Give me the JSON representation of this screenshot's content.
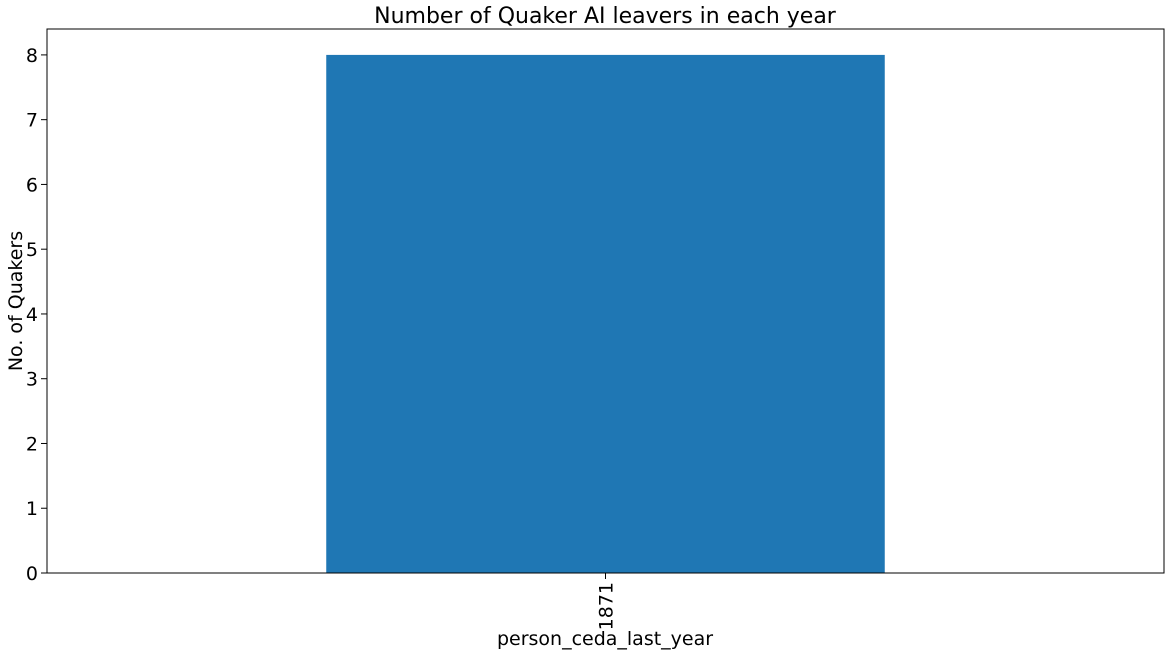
{
  "chart_data": {
    "type": "bar",
    "title": "Number of Quaker AI leavers in each year",
    "xlabel": "person_ceda_last_year",
    "ylabel": "No. of Quakers",
    "categories": [
      "1871"
    ],
    "values": [
      8
    ],
    "ylim": [
      0,
      8.4
    ],
    "yticks": [
      0,
      1,
      2,
      3,
      4,
      5,
      6,
      7,
      8
    ],
    "grid": false,
    "legend": "none",
    "bar_color": "#1f77b4"
  }
}
